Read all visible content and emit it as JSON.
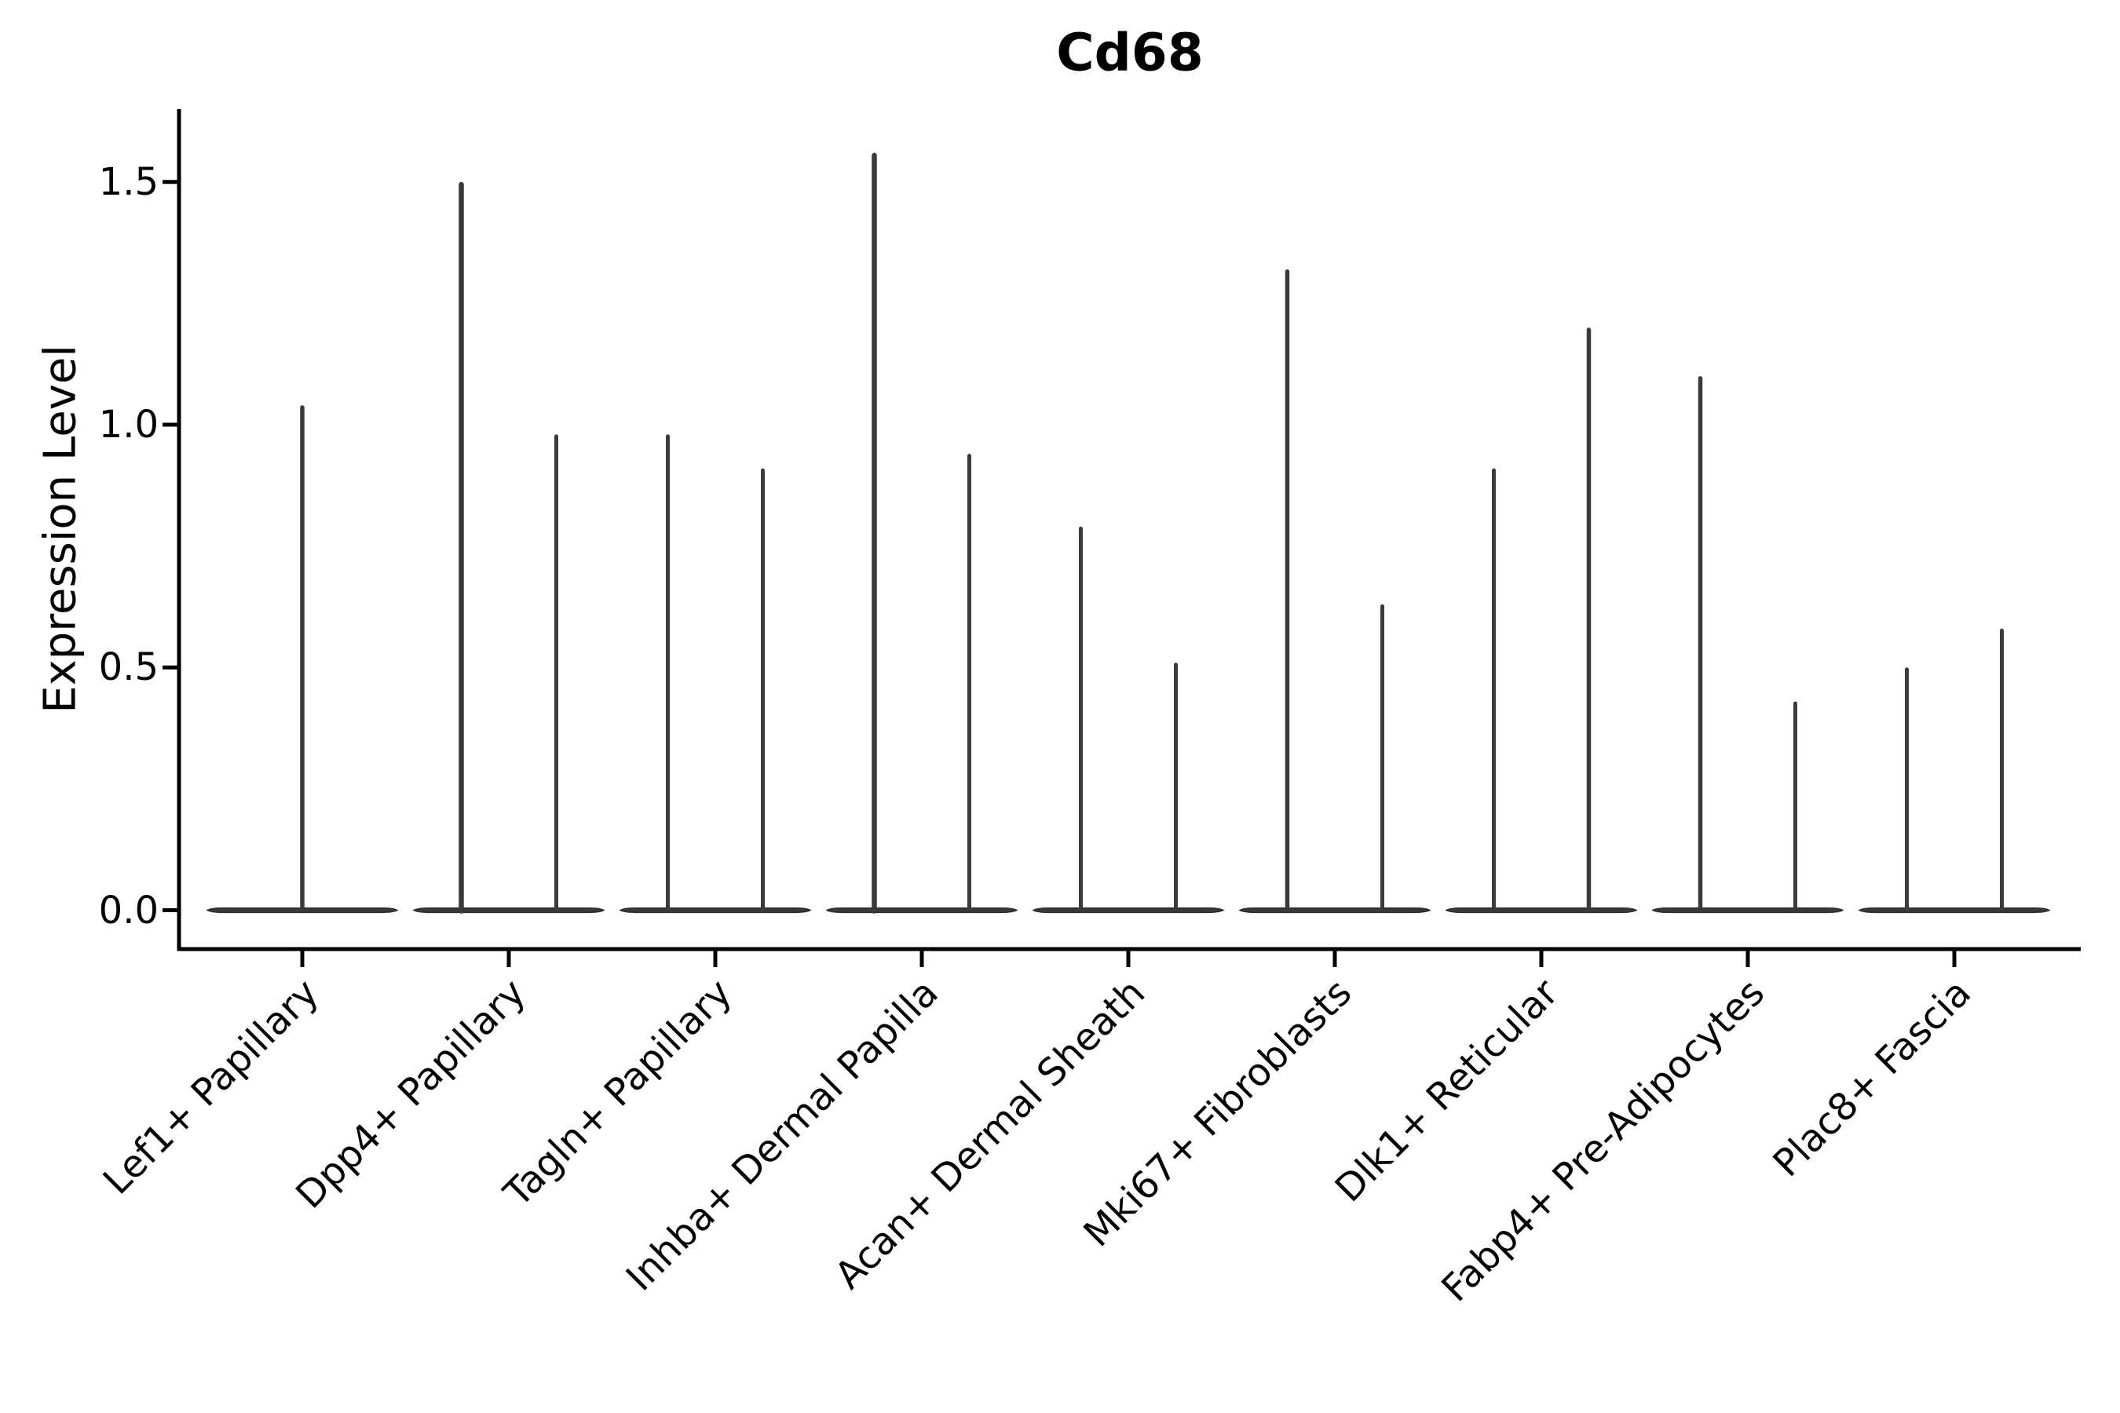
{
  "chart_data": {
    "type": "violin",
    "title": "Cd68",
    "ylabel": "Expression Level",
    "xlabel": "",
    "yticks": [
      0.0,
      0.5,
      1.0,
      1.5
    ],
    "ytick_labels": [
      "0.0",
      "0.5",
      "1.0",
      "1.5"
    ],
    "ylim": [
      -0.08,
      1.65
    ],
    "grid": false,
    "legend": "none",
    "background": "#ffffff",
    "axis_color": "#000000",
    "violin_fill": "#3a3a3a",
    "violin_outline": "#2b2b2b",
    "categories": [
      {
        "label": "Lef1+ Papillary",
        "violin_maxes": [
          1.04
        ]
      },
      {
        "label": "Dpp4+ Papillary",
        "violin_maxes": [
          1.5,
          0.98
        ]
      },
      {
        "label": "Tagln+ Papillary",
        "violin_maxes": [
          0.98,
          0.91
        ]
      },
      {
        "label": "Inhba+ Dermal Papilla",
        "violin_maxes": [
          1.56,
          0.94
        ]
      },
      {
        "label": "Acan+ Dermal Sheath",
        "violin_maxes": [
          0.79,
          0.51
        ]
      },
      {
        "label": "Mki67+ Fibroblasts",
        "violin_maxes": [
          1.32,
          0.63
        ]
      },
      {
        "label": "Dlk1+ Reticular",
        "violin_maxes": [
          0.91,
          1.2
        ]
      },
      {
        "label": "Fabp4+ Pre-Adipocytes",
        "violin_maxes": [
          1.1,
          0.43
        ]
      },
      {
        "label": "Plac8+ Fascia",
        "violin_maxes": [
          0.5,
          0.58
        ]
      }
    ]
  }
}
